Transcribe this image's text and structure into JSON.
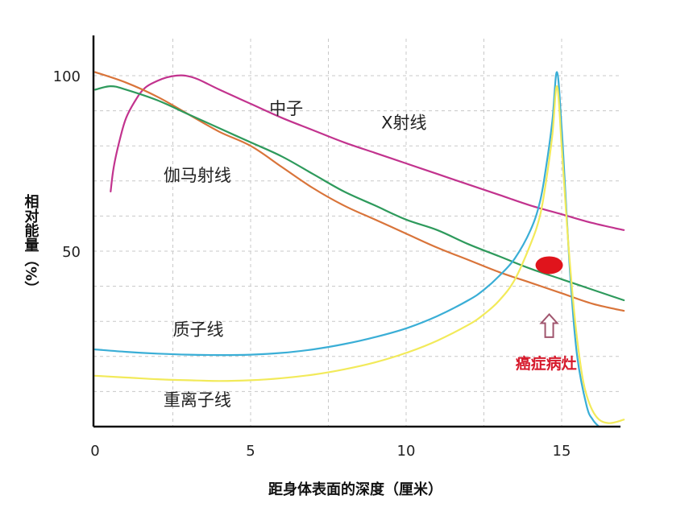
{
  "chart_data": {
    "type": "line",
    "xlabel": "距身体表面的深度（厘米）",
    "ylabel": "相对能量（%）",
    "xlim": [
      0,
      17
    ],
    "ylim": [
      0,
      110
    ],
    "x_ticks": [
      "0",
      "5",
      "10",
      "15"
    ],
    "y_ticks": [
      "50",
      "100"
    ],
    "grid": true,
    "series": [
      {
        "name": "X射线",
        "color": "#c2338e",
        "label_at": [
          9.2,
          85
        ],
        "x": [
          0.5,
          0.6,
          0.8,
          1.0,
          1.3,
          1.6,
          2.0,
          2.3,
          2.6,
          2.9,
          3.3,
          4,
          5,
          6,
          7,
          8,
          9,
          10,
          11,
          12,
          13,
          14,
          15,
          16,
          17
        ],
        "y": [
          67,
          74,
          82,
          88,
          93,
          96.5,
          98.5,
          99.5,
          100,
          100,
          99,
          96,
          92,
          88,
          84.5,
          81,
          78,
          75,
          72,
          69,
          66,
          63,
          60.5,
          58,
          56
        ]
      },
      {
        "name": "中子",
        "color": "#d9743a",
        "label_at": [
          5.6,
          89
        ],
        "x": [
          0,
          1,
          2,
          3,
          4,
          5,
          6,
          7,
          8,
          9,
          10,
          11,
          12,
          13,
          14,
          15,
          16,
          17
        ],
        "y": [
          101,
          98,
          94,
          89,
          84,
          80,
          74,
          68,
          63,
          59,
          55,
          51,
          47.5,
          44,
          41,
          38,
          35,
          33
        ]
      },
      {
        "name": "伽马射线",
        "color": "#2e9a5c",
        "label_at": [
          2.2,
          70
        ],
        "x": [
          0,
          0.5,
          1,
          2,
          3,
          4,
          5,
          6,
          7,
          8,
          9,
          10,
          11,
          12,
          13,
          14,
          15,
          16,
          17
        ],
        "y": [
          96,
          97,
          96,
          93,
          89,
          85,
          81,
          77,
          72,
          67,
          63,
          59,
          56,
          52,
          48.5,
          45,
          42,
          39,
          36
        ]
      },
      {
        "name": "质子线",
        "color": "#3aaed6",
        "label_at": [
          2.5,
          26
        ],
        "x": [
          0,
          1,
          2,
          3,
          4,
          5,
          6,
          7,
          8,
          9,
          10,
          11,
          12,
          12.5,
          13,
          13.5,
          14,
          14.3,
          14.5,
          14.7,
          14.85,
          15.0,
          15.15,
          15.3,
          15.5,
          15.8,
          16.0,
          16.2
        ],
        "y": [
          22,
          21.3,
          20.8,
          20.5,
          20.4,
          20.5,
          21,
          22,
          23.5,
          25.5,
          28,
          31.5,
          36,
          39,
          43,
          48,
          56,
          64,
          74,
          87,
          101,
          85,
          62,
          40,
          20,
          6,
          2,
          0
        ]
      },
      {
        "name": "重离子线",
        "color": "#f2ea5a",
        "label_at": [
          2.2,
          6
        ],
        "x": [
          0,
          1,
          2,
          3,
          4,
          5,
          6,
          7,
          8,
          9,
          10,
          11,
          12,
          12.5,
          13,
          13.5,
          14,
          14.3,
          14.5,
          14.7,
          14.85,
          15.0,
          15.2,
          15.4,
          15.6,
          15.8,
          16.1,
          16.5,
          17
        ],
        "y": [
          14.5,
          14,
          13.5,
          13.2,
          13,
          13.2,
          13.8,
          14.8,
          16.3,
          18.3,
          21,
          24.5,
          29,
          32,
          36,
          42,
          52,
          60,
          70,
          83,
          97,
          80,
          54,
          33,
          18,
          9,
          3,
          1,
          2
        ]
      }
    ],
    "annotations": [
      {
        "text": "癌症病灶",
        "color": "#d61a2c",
        "at": [
          14.5,
          16.5
        ]
      }
    ],
    "marker": {
      "shape": "ellipse",
      "color": "#e0141c",
      "center": [
        14.6,
        46
      ]
    }
  }
}
